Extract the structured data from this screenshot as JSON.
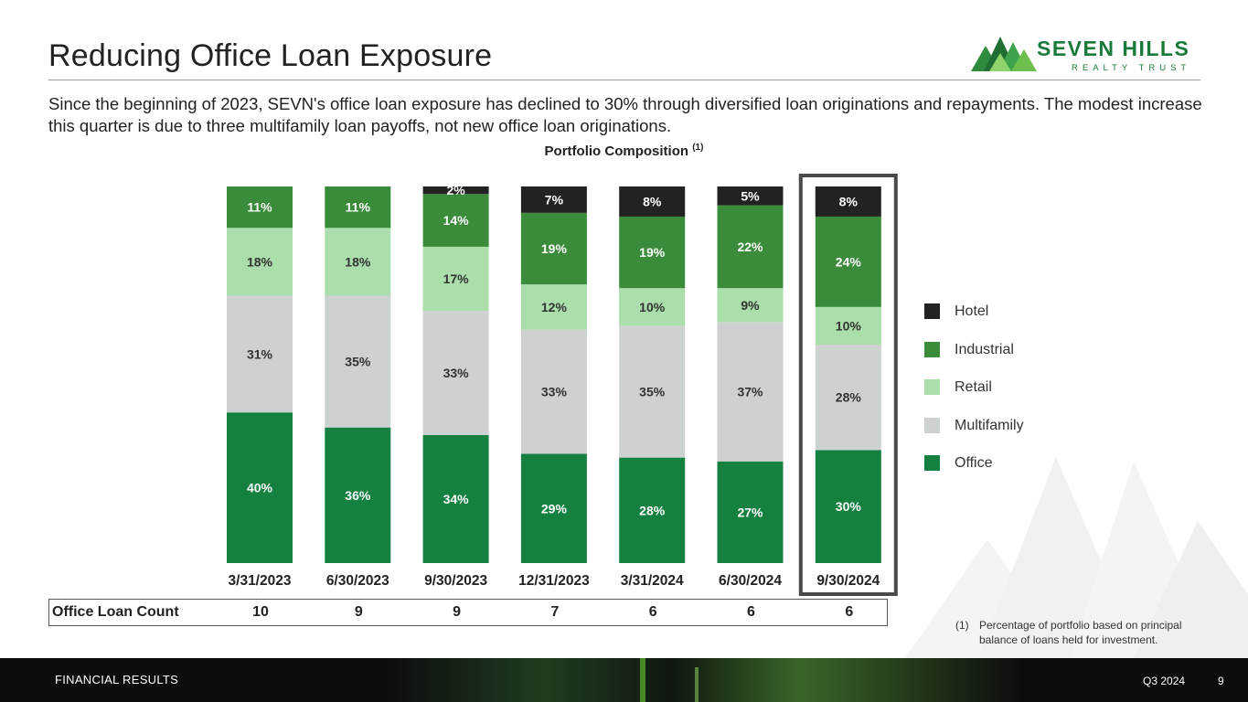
{
  "title": "Reducing Office Loan Exposure",
  "logo": {
    "name": "SEVEN HILLS",
    "sub": "REALTY TRUST"
  },
  "intro": "Since the beginning of 2023, SEVN's office loan exposure has declined to 30% through diversified loan originations and repayments. The modest increase this quarter is due to three multifamily loan payoffs, not new office loan originations.",
  "chart_title": "Portfolio Composition",
  "chart_title_note": "(1)",
  "chart_data": {
    "type": "bar",
    "stacked": true,
    "categories": [
      "3/31/2023",
      "6/30/2023",
      "9/30/2023",
      "12/31/2023",
      "3/31/2024",
      "6/30/2024",
      "9/30/2024"
    ],
    "highlighted_category": "9/30/2024",
    "series": [
      {
        "name": "Office",
        "color": "#148140",
        "values": [
          40,
          36,
          34,
          29,
          28,
          27,
          30
        ]
      },
      {
        "name": "Multifamily",
        "color": "#cdd1d0",
        "values": [
          31,
          35,
          33,
          33,
          35,
          37,
          28
        ]
      },
      {
        "name": "Retail",
        "color": "#aadeaa",
        "values": [
          18,
          18,
          17,
          12,
          10,
          9,
          10
        ]
      },
      {
        "name": "Industrial",
        "color": "#3a8c3a",
        "values": [
          11,
          11,
          14,
          19,
          19,
          22,
          24
        ]
      },
      {
        "name": "Hotel",
        "color": "#222222",
        "values": [
          0,
          0,
          2,
          7,
          8,
          5,
          8
        ]
      }
    ],
    "ylim": [
      0,
      100
    ],
    "value_suffix": "%",
    "legend": "right",
    "grid": false
  },
  "legend_items": [
    {
      "label": "Hotel",
      "color": "#222222"
    },
    {
      "label": "Industrial",
      "color": "#3a8c3a"
    },
    {
      "label": "Retail",
      "color": "#aadeaa"
    },
    {
      "label": "Multifamily",
      "color": "#cdd1d0"
    },
    {
      "label": "Office",
      "color": "#148140"
    }
  ],
  "office_loan_count": {
    "label": "Office Loan Count",
    "values": [
      "10",
      "9",
      "9",
      "7",
      "6",
      "6",
      "6"
    ]
  },
  "footnote": {
    "mark": "(1)",
    "text": "Percentage of portfolio based on principal balance of loans held for investment."
  },
  "footer": {
    "section": "FINANCIAL RESULTS",
    "quarter": "Q3 2024",
    "page": "9"
  }
}
